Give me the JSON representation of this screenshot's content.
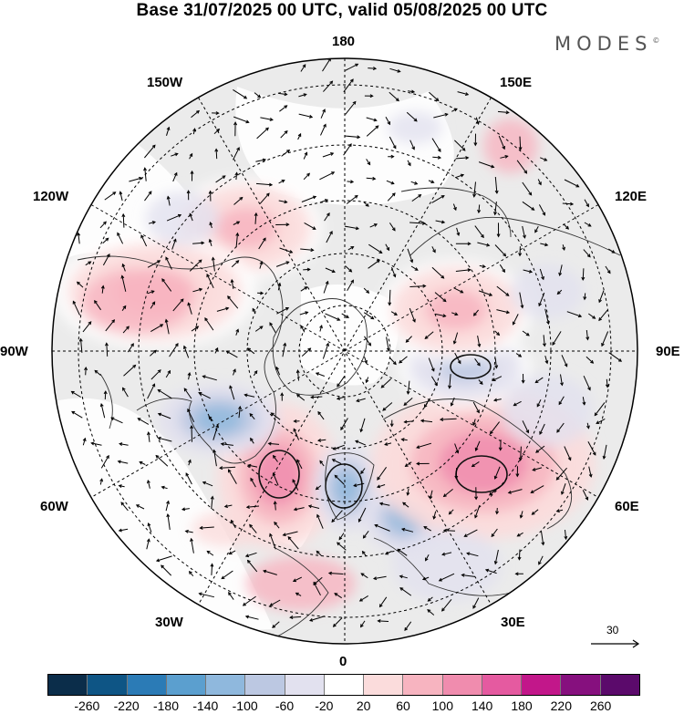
{
  "header": {
    "title": "Base 31/07/2025 00 UTC, valid 05/08/2025 00 UTC",
    "logo": "MODES"
  },
  "longitude_labels": {
    "top": "180",
    "bottom": "0",
    "left": "90W",
    "right": "90E",
    "upper_left": "150W",
    "mid_left": "120W",
    "lower_left": "60W",
    "bottom_left": "30W",
    "upper_right": "150E",
    "mid_right": "120E",
    "lower_right": "60E",
    "bottom_right": "30E"
  },
  "vector_scale": {
    "label": "30"
  },
  "colorbar": {
    "colors": [
      "#0b2d4a",
      "#0e5585",
      "#2b7bb6",
      "#5b9fcf",
      "#8fb8dd",
      "#bcc8e2",
      "#e2e1ef",
      "#ffffff",
      "#fbdcdc",
      "#f7b4c0",
      "#f08cae",
      "#e55aa0",
      "#c2178a",
      "#86107e",
      "#5b0a6b"
    ],
    "ticks": [
      "-260",
      "-220",
      "-180",
      "-140",
      "-100",
      "-60",
      "-20",
      "20",
      "60",
      "100",
      "140",
      "180",
      "220",
      "260"
    ]
  },
  "anomaly_centers": [
    {
      "region": "north-atlantic",
      "value": 180
    },
    {
      "region": "norwegian-sea",
      "value": -180
    },
    {
      "region": "scandinavia-russia",
      "value": -140
    },
    {
      "region": "siberia",
      "value": 160
    },
    {
      "region": "central-siberia",
      "value": -120
    },
    {
      "region": "east-siberia",
      "value": 100
    },
    {
      "region": "hudson-bay",
      "value": -140
    },
    {
      "region": "alaska",
      "value": 80
    },
    {
      "region": "west-canada",
      "value": 80
    }
  ]
}
